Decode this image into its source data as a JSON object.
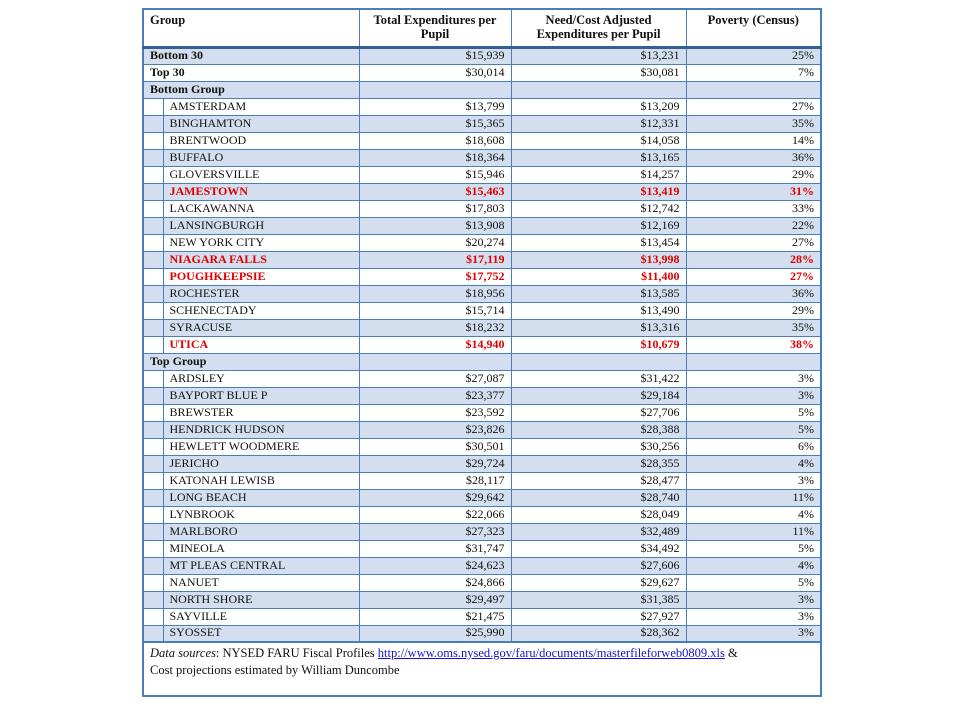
{
  "colors": {
    "border_blue": "#4A7EBB",
    "header_rule_blue": "#365F91",
    "band_fill": "#D3DFEE",
    "highlight_red": "#E00000",
    "link_blue": "#1414C8"
  },
  "table": {
    "headers": {
      "group": "Group",
      "total": "Total Expenditures per Pupil",
      "need": "Need/Cost Adjusted Expenditures per Pupil",
      "poverty": "Poverty (Census)"
    },
    "rows": [
      {
        "kind": "summary",
        "label": "Bottom 30",
        "total": "$15,939",
        "need": "$13,231",
        "poverty": "25%",
        "highlight": false
      },
      {
        "kind": "summary",
        "label": "Top 30",
        "total": "$30,014",
        "need": "$30,081",
        "poverty": "7%",
        "highlight": false
      },
      {
        "kind": "section",
        "label": "Bottom Group",
        "total": "",
        "need": "",
        "poverty": "",
        "highlight": false
      },
      {
        "kind": "district",
        "label": "AMSTERDAM",
        "total": "$13,799",
        "need": "$13,209",
        "poverty": "27%",
        "highlight": false
      },
      {
        "kind": "district",
        "label": "BINGHAMTON",
        "total": "$15,365",
        "need": "$12,331",
        "poverty": "35%",
        "highlight": false
      },
      {
        "kind": "district",
        "label": "BRENTWOOD",
        "total": "$18,608",
        "need": "$14,058",
        "poverty": "14%",
        "highlight": false
      },
      {
        "kind": "district",
        "label": "BUFFALO",
        "total": "$18,364",
        "need": "$13,165",
        "poverty": "36%",
        "highlight": false
      },
      {
        "kind": "district",
        "label": "GLOVERSVILLE",
        "total": "$15,946",
        "need": "$14,257",
        "poverty": "29%",
        "highlight": false
      },
      {
        "kind": "district",
        "label": "JAMESTOWN",
        "total": "$15,463",
        "need": "$13,419",
        "poverty": "31%",
        "highlight": true
      },
      {
        "kind": "district",
        "label": "LACKAWANNA",
        "total": "$17,803",
        "need": "$12,742",
        "poverty": "33%",
        "highlight": false
      },
      {
        "kind": "district",
        "label": "LANSINGBURGH",
        "total": "$13,908",
        "need": "$12,169",
        "poverty": "22%",
        "highlight": false
      },
      {
        "kind": "district",
        "label": "NEW YORK CITY",
        "total": "$20,274",
        "need": "$13,454",
        "poverty": "27%",
        "highlight": false
      },
      {
        "kind": "district",
        "label": "NIAGARA FALLS",
        "total": "$17,119",
        "need": "$13,998",
        "poverty": "28%",
        "highlight": true
      },
      {
        "kind": "district",
        "label": "POUGHKEEPSIE",
        "total": "$17,752",
        "need": "$11,400",
        "poverty": "27%",
        "highlight": true
      },
      {
        "kind": "district",
        "label": "ROCHESTER",
        "total": "$18,956",
        "need": "$13,585",
        "poverty": "36%",
        "highlight": false
      },
      {
        "kind": "district",
        "label": "SCHENECTADY",
        "total": "$15,714",
        "need": "$13,490",
        "poverty": "29%",
        "highlight": false
      },
      {
        "kind": "district",
        "label": "SYRACUSE",
        "total": "$18,232",
        "need": "$13,316",
        "poverty": "35%",
        "highlight": false
      },
      {
        "kind": "district",
        "label": "UTICA",
        "total": "$14,940",
        "need": "$10,679",
        "poverty": "38%",
        "highlight": true
      },
      {
        "kind": "section",
        "label": "Top Group",
        "total": "",
        "need": "",
        "poverty": "",
        "highlight": false
      },
      {
        "kind": "district",
        "label": "ARDSLEY",
        "total": "$27,087",
        "need": "$31,422",
        "poverty": "3%",
        "highlight": false
      },
      {
        "kind": "district",
        "label": "BAYPORT BLUE P",
        "total": "$23,377",
        "need": "$29,184",
        "poverty": "3%",
        "highlight": false
      },
      {
        "kind": "district",
        "label": "BREWSTER",
        "total": "$23,592",
        "need": "$27,706",
        "poverty": "5%",
        "highlight": false
      },
      {
        "kind": "district",
        "label": "HENDRICK HUDSON",
        "total": "$23,826",
        "need": "$28,388",
        "poverty": "5%",
        "highlight": false
      },
      {
        "kind": "district",
        "label": "HEWLETT WOODMERE",
        "total": "$30,501",
        "need": "$30,256",
        "poverty": "6%",
        "highlight": false
      },
      {
        "kind": "district",
        "label": "JERICHO",
        "total": "$29,724",
        "need": "$28,355",
        "poverty": "4%",
        "highlight": false
      },
      {
        "kind": "district",
        "label": "KATONAH LEWISB",
        "total": "$28,117",
        "need": "$28,477",
        "poverty": "3%",
        "highlight": false
      },
      {
        "kind": "district",
        "label": "LONG BEACH",
        "total": "$29,642",
        "need": "$28,740",
        "poverty": "11%",
        "highlight": false
      },
      {
        "kind": "district",
        "label": "LYNBROOK",
        "total": "$22,066",
        "need": "$28,049",
        "poverty": "4%",
        "highlight": false
      },
      {
        "kind": "district",
        "label": "MARLBORO",
        "total": "$27,323",
        "need": "$32,489",
        "poverty": "11%",
        "highlight": false
      },
      {
        "kind": "district",
        "label": "MINEOLA",
        "total": "$31,747",
        "need": "$34,492",
        "poverty": "5%",
        "highlight": false
      },
      {
        "kind": "district",
        "label": "MT PLEAS CENTRAL",
        "total": "$24,623",
        "need": "$27,606",
        "poverty": "4%",
        "highlight": false
      },
      {
        "kind": "district",
        "label": "NANUET",
        "total": "$24,866",
        "need": "$29,627",
        "poverty": "5%",
        "highlight": false
      },
      {
        "kind": "district",
        "label": "NORTH SHORE",
        "total": "$29,497",
        "need": "$31,385",
        "poverty": "3%",
        "highlight": false
      },
      {
        "kind": "district",
        "label": "SAYVILLE",
        "total": "$21,475",
        "need": "$27,927",
        "poverty": "3%",
        "highlight": false
      },
      {
        "kind": "district",
        "label": "SYOSSET",
        "total": "$25,990",
        "need": "$28,362",
        "poverty": "3%",
        "highlight": false
      }
    ],
    "footer": {
      "prefix_italic": "Data sources",
      "prefix_rest": ": NYSED FARU Fiscal Profiles ",
      "link_text": "http://www.oms.nysed.gov/faru/documents/masterfileforweb0809.xls",
      "suffix": " &",
      "line2": "Cost projections estimated by William Duncombe"
    }
  }
}
